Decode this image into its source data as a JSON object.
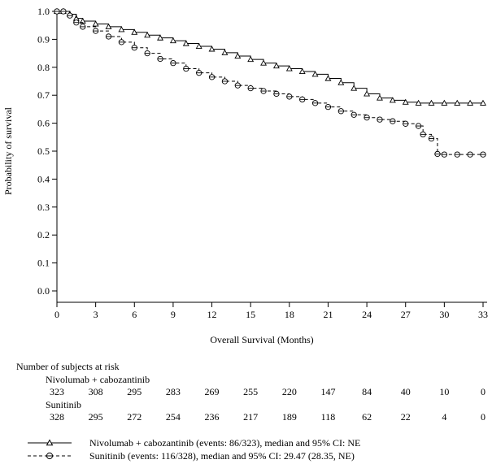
{
  "chart_data": {
    "type": "line",
    "title": "",
    "xlabel": "Overall Survival (Months)",
    "ylabel": "Probability of survival",
    "xlim": [
      0,
      33
    ],
    "ylim": [
      0,
      1.0
    ],
    "xticks": [
      "0",
      "3",
      "6",
      "9",
      "12",
      "15",
      "18",
      "21",
      "24",
      "27",
      "30",
      "33"
    ],
    "yticks": [
      "0.0",
      "0.1",
      "0.2",
      "0.3",
      "0.4",
      "0.5",
      "0.6",
      "0.7",
      "0.8",
      "0.9",
      "1.0"
    ],
    "grid": false,
    "legend_position": "bottom",
    "series": [
      {
        "name": "Nivolumab + cabozantinib (events: 86/323), median and 95% CI: NE",
        "marker": "triangle",
        "line_style": "solid",
        "x": [
          0,
          0.5,
          1.0,
          1.5,
          2.0,
          3.0,
          4.0,
          5.0,
          6.0,
          7.0,
          8.0,
          9.0,
          10.0,
          11.0,
          12.0,
          13.0,
          14.0,
          15.0,
          16.0,
          17.0,
          18.0,
          19.0,
          20.0,
          21.0,
          22.0,
          23.0,
          24.0,
          25.0,
          26.0,
          27.0,
          28.0,
          29.0,
          30.0,
          31.0,
          32.0,
          33.0
        ],
        "y": [
          1.0,
          1.0,
          0.99,
          0.975,
          0.965,
          0.955,
          0.945,
          0.935,
          0.925,
          0.915,
          0.905,
          0.895,
          0.885,
          0.875,
          0.865,
          0.852,
          0.84,
          0.828,
          0.815,
          0.805,
          0.795,
          0.785,
          0.775,
          0.76,
          0.745,
          0.725,
          0.705,
          0.69,
          0.682,
          0.675,
          0.672,
          0.672,
          0.672,
          0.672,
          0.672,
          0.672
        ]
      },
      {
        "name": "Sunitinib (events: 116/328), median and 95% CI: 29.47 (28.35, NE)",
        "marker": "circle",
        "line_style": "dashed",
        "x": [
          0,
          0.5,
          1.0,
          1.5,
          2.0,
          3.0,
          4.0,
          5.0,
          6.0,
          7.0,
          8.0,
          9.0,
          10.0,
          11.0,
          12.0,
          13.0,
          14.0,
          15.0,
          16.0,
          17.0,
          18.0,
          19.0,
          20.0,
          21.0,
          22.0,
          23.0,
          24.0,
          25.0,
          26.0,
          27.0,
          28.0,
          28.35,
          29.0,
          29.47,
          30.0,
          31.0,
          32.0,
          33.0
        ],
        "y": [
          1.0,
          1.0,
          0.985,
          0.96,
          0.945,
          0.93,
          0.91,
          0.89,
          0.87,
          0.85,
          0.83,
          0.815,
          0.795,
          0.78,
          0.765,
          0.75,
          0.735,
          0.725,
          0.715,
          0.705,
          0.695,
          0.685,
          0.672,
          0.658,
          0.643,
          0.63,
          0.62,
          0.613,
          0.607,
          0.598,
          0.59,
          0.56,
          0.545,
          0.49,
          0.488,
          0.488,
          0.488,
          0.488
        ]
      }
    ]
  },
  "risk_table": {
    "title": "Number of subjects at risk",
    "times": [
      0,
      3,
      6,
      9,
      12,
      15,
      18,
      21,
      24,
      27,
      30,
      33
    ],
    "groups": [
      {
        "name": "Nivolumab + cabozantinib",
        "counts": [
          "323",
          "308",
          "295",
          "283",
          "269",
          "255",
          "220",
          "147",
          "84",
          "40",
          "10",
          "0"
        ]
      },
      {
        "name": "Sunitinib",
        "counts": [
          "328",
          "295",
          "272",
          "254",
          "236",
          "217",
          "189",
          "118",
          "62",
          "22",
          "4",
          "0"
        ]
      }
    ]
  },
  "legend": [
    {
      "label": "Nivolumab + cabozantinib (events: 86/323), median and 95% CI: NE",
      "marker": "triangle",
      "line_style": "solid"
    },
    {
      "label": "Sunitinib (events: 116/328), median and 95% CI: 29.47 (28.35, NE)",
      "marker": "circle",
      "line_style": "dashed"
    }
  ]
}
